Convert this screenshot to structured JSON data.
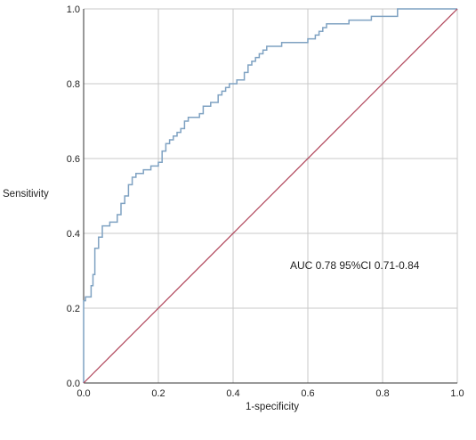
{
  "chart_data": {
    "type": "line",
    "title": "",
    "xlabel": "1-specificity",
    "ylabel": "Sensitivity",
    "xlim": [
      0,
      1
    ],
    "ylim": [
      0,
      1
    ],
    "x_ticks": [
      "0.0",
      "0.2",
      "0.4",
      "0.6",
      "0.8",
      "1.0"
    ],
    "y_ticks": [
      "0.0",
      "0.2",
      "0.4",
      "0.6",
      "0.8",
      "1.0"
    ],
    "grid": true,
    "legend": "none",
    "annotation": "AUC 0.78 95%CI 0.71-0.84",
    "colors": {
      "roc": "#7fa2c2",
      "reference": "#b0455a",
      "grid": "#c8c8c8",
      "axis": "#333333"
    },
    "series": [
      {
        "role": "roc",
        "x": [
          0.0,
          0.0,
          0.005,
          0.005,
          0.02,
          0.02,
          0.025,
          0.025,
          0.03,
          0.03,
          0.04,
          0.04,
          0.05,
          0.05,
          0.07,
          0.07,
          0.09,
          0.09,
          0.1,
          0.1,
          0.11,
          0.11,
          0.12,
          0.12,
          0.13,
          0.13,
          0.14,
          0.14,
          0.16,
          0.16,
          0.18,
          0.18,
          0.2,
          0.2,
          0.21,
          0.21,
          0.22,
          0.22,
          0.23,
          0.23,
          0.24,
          0.24,
          0.25,
          0.25,
          0.26,
          0.26,
          0.27,
          0.27,
          0.28,
          0.28,
          0.31,
          0.31,
          0.32,
          0.32,
          0.34,
          0.34,
          0.36,
          0.36,
          0.37,
          0.37,
          0.38,
          0.38,
          0.39,
          0.39,
          0.41,
          0.41,
          0.43,
          0.43,
          0.44,
          0.44,
          0.45,
          0.45,
          0.46,
          0.46,
          0.47,
          0.47,
          0.48,
          0.48,
          0.49,
          0.49,
          0.52,
          0.52,
          0.53,
          0.53,
          0.6,
          0.6,
          0.62,
          0.62,
          0.63,
          0.63,
          0.64,
          0.64,
          0.65,
          0.65,
          0.69,
          0.69,
          0.71,
          0.71,
          0.77,
          0.77,
          0.78,
          0.78,
          0.81,
          0.81,
          0.84,
          0.84,
          0.89,
          0.89,
          1.0
        ],
        "y": [
          0.0,
          0.22,
          0.22,
          0.23,
          0.23,
          0.26,
          0.26,
          0.29,
          0.29,
          0.36,
          0.36,
          0.39,
          0.39,
          0.42,
          0.42,
          0.43,
          0.43,
          0.45,
          0.45,
          0.48,
          0.48,
          0.5,
          0.5,
          0.53,
          0.53,
          0.55,
          0.55,
          0.56,
          0.56,
          0.57,
          0.57,
          0.58,
          0.58,
          0.59,
          0.59,
          0.62,
          0.62,
          0.64,
          0.64,
          0.65,
          0.65,
          0.66,
          0.66,
          0.67,
          0.67,
          0.68,
          0.68,
          0.7,
          0.7,
          0.71,
          0.71,
          0.72,
          0.72,
          0.74,
          0.74,
          0.75,
          0.75,
          0.77,
          0.77,
          0.78,
          0.78,
          0.79,
          0.79,
          0.8,
          0.8,
          0.81,
          0.81,
          0.83,
          0.83,
          0.85,
          0.85,
          0.86,
          0.86,
          0.87,
          0.87,
          0.88,
          0.88,
          0.89,
          0.89,
          0.9,
          0.9,
          0.9,
          0.9,
          0.91,
          0.91,
          0.92,
          0.92,
          0.93,
          0.93,
          0.94,
          0.94,
          0.95,
          0.95,
          0.96,
          0.96,
          0.96,
          0.96,
          0.97,
          0.97,
          0.98,
          0.98,
          0.98,
          0.98,
          0.98,
          0.98,
          1.0,
          1.0,
          1.0,
          1.0
        ]
      },
      {
        "role": "reference",
        "x": [
          0,
          1
        ],
        "y": [
          0,
          1
        ]
      }
    ]
  }
}
